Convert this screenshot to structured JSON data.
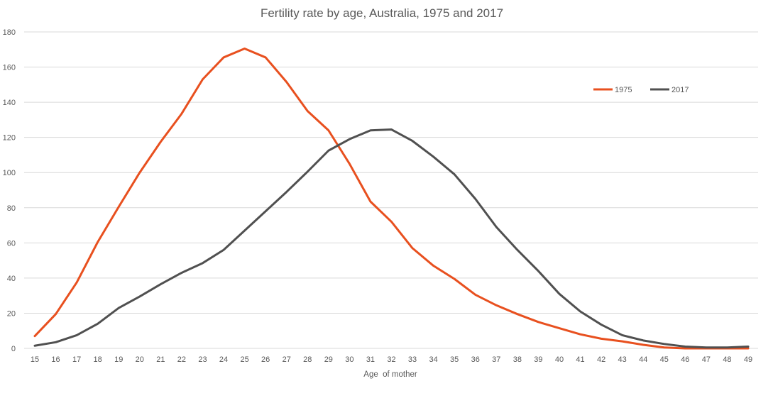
{
  "chart_data": {
    "type": "line",
    "title": "Fertility rate by age, Australia, 1975 and 2017",
    "xlabel": "Age  of mother",
    "ylabel": "",
    "ylim": [
      0,
      180
    ],
    "yticks": [
      0,
      20,
      40,
      60,
      80,
      100,
      120,
      140,
      160,
      180
    ],
    "grid": true,
    "legend_position": "top-right",
    "x": [
      15,
      16,
      17,
      18,
      19,
      20,
      21,
      22,
      23,
      24,
      25,
      26,
      27,
      28,
      29,
      30,
      31,
      32,
      33,
      34,
      35,
      36,
      37,
      38,
      39,
      40,
      41,
      42,
      43,
      44,
      45,
      46,
      47,
      48,
      49
    ],
    "series": [
      {
        "name": "1975",
        "color": "#e8501f",
        "values": [
          7,
          19.5,
          37.5,
          60.5,
          80.5,
          100,
          117.5,
          133.5,
          153,
          165.5,
          170.5,
          165.5,
          151.5,
          135,
          124,
          105,
          83.5,
          72,
          57,
          47,
          39.5,
          30.5,
          24.5,
          19.5,
          15,
          11.5,
          8,
          5.5,
          4,
          2,
          0.5,
          0,
          0,
          0,
          0
        ]
      },
      {
        "name": "2017",
        "color": "#505050",
        "values": [
          1.5,
          3.5,
          7.5,
          14,
          23,
          29.5,
          36.5,
          43,
          48.5,
          56,
          67,
          78,
          89,
          100.5,
          112.5,
          119,
          124,
          124.5,
          118,
          109,
          99,
          85,
          69,
          56,
          44,
          31,
          21,
          13.5,
          7.5,
          4.5,
          2.5,
          1,
          0.5,
          0.5,
          1
        ]
      }
    ]
  }
}
